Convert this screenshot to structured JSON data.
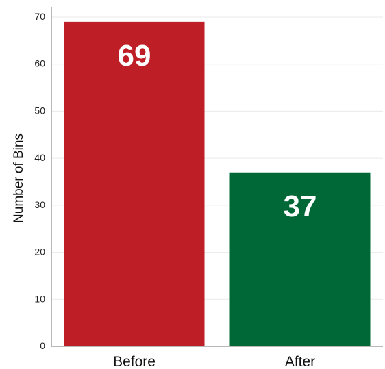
{
  "chart_data": {
    "type": "bar",
    "categories": [
      "Before",
      "After"
    ],
    "values": [
      69,
      37
    ],
    "data_labels": [
      "69",
      "37"
    ],
    "colors": [
      "#be1e26",
      "#006837"
    ],
    "title": "",
    "xlabel": "",
    "ylabel": "Number of Bins",
    "ylim": [
      0,
      70
    ],
    "yticks": [
      0,
      10,
      20,
      30,
      40,
      50,
      60,
      70
    ],
    "grid": true,
    "legend": "none"
  }
}
